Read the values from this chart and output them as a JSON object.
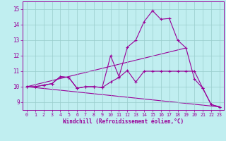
{
  "xlabel": "Windchill (Refroidissement éolien,°C)",
  "ylabel": "",
  "xlim": [
    -0.5,
    23.5
  ],
  "ylim": [
    8.5,
    15.5
  ],
  "yticks": [
    9,
    10,
    11,
    12,
    13,
    14,
    15
  ],
  "xticks": [
    0,
    1,
    2,
    3,
    4,
    5,
    6,
    7,
    8,
    9,
    10,
    11,
    12,
    13,
    14,
    15,
    16,
    17,
    18,
    19,
    20,
    21,
    22,
    23
  ],
  "bg_color": "#c0eef0",
  "grid_color": "#99cccc",
  "line_color": "#990099",
  "line1_x": [
    0,
    1,
    2,
    3,
    4,
    5,
    6,
    7,
    8,
    9,
    10,
    11,
    12,
    13,
    14,
    15,
    16,
    17,
    18,
    19,
    20,
    21,
    22,
    23
  ],
  "line1_y": [
    10.0,
    10.0,
    10.1,
    10.2,
    10.65,
    10.6,
    9.9,
    10.0,
    10.0,
    9.95,
    10.3,
    10.6,
    11.05,
    10.3,
    11.0,
    11.0,
    11.0,
    11.0,
    11.0,
    11.0,
    11.0,
    9.9,
    8.85,
    8.7
  ],
  "line2_x": [
    0,
    1,
    2,
    3,
    4,
    5,
    6,
    7,
    8,
    9,
    10,
    11,
    12,
    13,
    14,
    15,
    16,
    17,
    18,
    19,
    20,
    21,
    22,
    23
  ],
  "line2_y": [
    10.0,
    10.0,
    10.1,
    10.2,
    10.65,
    10.6,
    9.9,
    10.0,
    10.0,
    9.95,
    12.0,
    10.65,
    12.55,
    13.0,
    14.2,
    14.9,
    14.35,
    14.4,
    13.0,
    12.5,
    10.5,
    9.9,
    8.85,
    8.7
  ],
  "line3_x": [
    0,
    19
  ],
  "line3_y": [
    10.0,
    12.5
  ],
  "line4_x": [
    0,
    23
  ],
  "line4_y": [
    10.0,
    8.7
  ]
}
